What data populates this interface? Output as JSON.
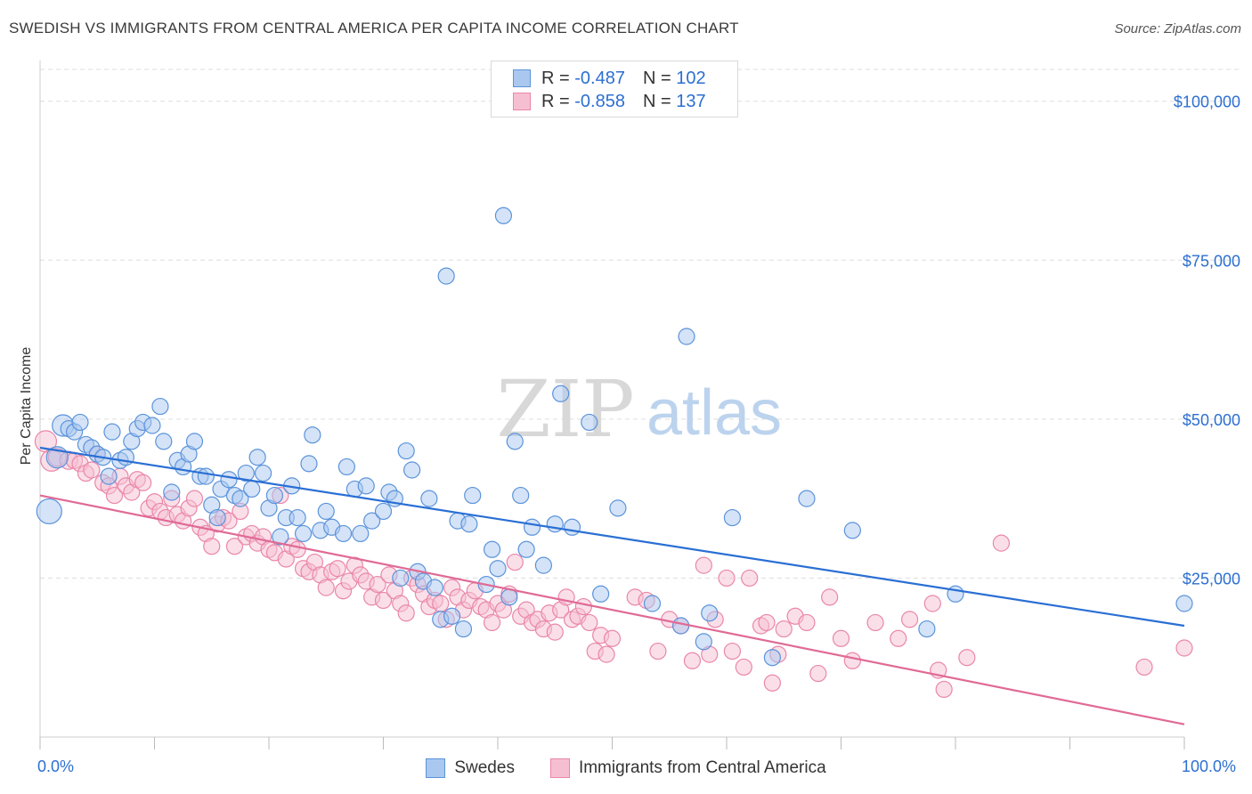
{
  "title": "SWEDISH VS IMMIGRANTS FROM CENTRAL AMERICA PER CAPITA INCOME CORRELATION CHART",
  "source": "Source: ZipAtlas.com",
  "watermark": {
    "zip": "ZIP",
    "atlas": "atlas"
  },
  "legend": {
    "rows": [
      {
        "r_label": "R = ",
        "r_value": "-0.487",
        "n_label": "N = ",
        "n_value": "102"
      },
      {
        "r_label": "R = ",
        "r_value": "-0.858",
        "n_label": "N = ",
        "n_value": "137"
      }
    ]
  },
  "bottom_legend": [
    "Swedes",
    "Immigrants from Central America"
  ],
  "colors": {
    "blue_fill": "#aac8ef",
    "blue_stroke": "#5b93db",
    "blue_line": "#2a6fd4",
    "pink_fill": "#f6bfd1",
    "pink_stroke": "#ea86a9",
    "pink_line": "#e06a95",
    "tick_text": "#2c6fd1",
    "grid": "#dddddd"
  },
  "chart_data": {
    "type": "scatter",
    "title": "SWEDISH VS IMMIGRANTS FROM CENTRAL AMERICA PER CAPITA INCOME CORRELATION CHART",
    "xlabel": "",
    "ylabel": "Per Capita Income",
    "xlim": [
      0,
      100
    ],
    "ylim": [
      0,
      105000
    ],
    "x_tick_labels": [
      "0.0%",
      "100.0%"
    ],
    "y_ticks": [
      25000,
      50000,
      75000,
      100000
    ],
    "y_tick_labels": [
      "$25,000",
      "$50,000",
      "$75,000",
      "$100,000"
    ],
    "grid": true,
    "legend_position": "top-center",
    "series": [
      {
        "name": "Swedes",
        "r": -0.487,
        "n": 102,
        "trend": {
          "x": [
            0,
            100
          ],
          "y": [
            45500,
            17500
          ]
        },
        "points": [
          [
            0.8,
            35500,
            14
          ],
          [
            1.5,
            44000,
            12
          ],
          [
            2,
            49000,
            12
          ],
          [
            2.5,
            48500,
            9
          ],
          [
            3,
            48000,
            9
          ],
          [
            3.5,
            49500,
            9
          ],
          [
            4,
            46000,
            9
          ],
          [
            4.5,
            45500,
            9
          ],
          [
            5,
            44500,
            9
          ],
          [
            5.5,
            44000,
            9
          ],
          [
            6,
            41000,
            9
          ],
          [
            6.3,
            48000,
            9
          ],
          [
            7,
            43500,
            9
          ],
          [
            7.5,
            44000,
            9
          ],
          [
            8,
            46500,
            9
          ],
          [
            8.5,
            48500,
            9
          ],
          [
            9,
            49500,
            9
          ],
          [
            9.8,
            49000,
            9
          ],
          [
            10.5,
            52000,
            9
          ],
          [
            10.8,
            46500,
            9
          ],
          [
            11.5,
            38500,
            9
          ],
          [
            12,
            43500,
            9
          ],
          [
            12.5,
            42500,
            9
          ],
          [
            13,
            44500,
            9
          ],
          [
            13.5,
            46500,
            9
          ],
          [
            14,
            41000,
            9
          ],
          [
            14.5,
            41000,
            9
          ],
          [
            15,
            36500,
            9
          ],
          [
            15.5,
            34500,
            9
          ],
          [
            15.8,
            39000,
            9
          ],
          [
            16.5,
            40500,
            9
          ],
          [
            17,
            38000,
            9
          ],
          [
            17.5,
            37500,
            9
          ],
          [
            18,
            41500,
            9
          ],
          [
            18.5,
            39000,
            9
          ],
          [
            19,
            44000,
            9
          ],
          [
            19.5,
            41500,
            9
          ],
          [
            20,
            36000,
            9
          ],
          [
            20.5,
            38000,
            9
          ],
          [
            21,
            31500,
            9
          ],
          [
            21.5,
            34500,
            9
          ],
          [
            22,
            39500,
            9
          ],
          [
            22.5,
            34500,
            9
          ],
          [
            23,
            32000,
            9
          ],
          [
            23.5,
            43000,
            9
          ],
          [
            23.8,
            47500,
            9
          ],
          [
            24.5,
            32500,
            9
          ],
          [
            25,
            35500,
            9
          ],
          [
            25.5,
            33000,
            9
          ],
          [
            26.5,
            32000,
            9
          ],
          [
            26.8,
            42500,
            9
          ],
          [
            27.5,
            39000,
            9
          ],
          [
            28,
            32000,
            9
          ],
          [
            28.5,
            39500,
            9
          ],
          [
            29,
            34000,
            9
          ],
          [
            30,
            35500,
            9
          ],
          [
            30.5,
            38500,
            9
          ],
          [
            31,
            37500,
            9
          ],
          [
            31.5,
            25000,
            9
          ],
          [
            32,
            45000,
            9
          ],
          [
            32.5,
            42000,
            9
          ],
          [
            33,
            26000,
            9
          ],
          [
            33.5,
            24500,
            9
          ],
          [
            34,
            37500,
            9
          ],
          [
            34.5,
            23500,
            9
          ],
          [
            35,
            18500,
            9
          ],
          [
            35.5,
            72500,
            9
          ],
          [
            36,
            19000,
            9
          ],
          [
            36.5,
            34000,
            9
          ],
          [
            37,
            17000,
            9
          ],
          [
            37.5,
            33500,
            9
          ],
          [
            37.8,
            38000,
            9
          ],
          [
            39,
            24000,
            9
          ],
          [
            39.5,
            29500,
            9
          ],
          [
            40,
            26500,
            9
          ],
          [
            40.5,
            82000,
            9
          ],
          [
            41,
            22000,
            9
          ],
          [
            41.5,
            46500,
            9
          ],
          [
            42,
            38000,
            9
          ],
          [
            42.5,
            29500,
            9
          ],
          [
            43,
            33000,
            9
          ],
          [
            44,
            27000,
            9
          ],
          [
            45,
            33500,
            9
          ],
          [
            45.5,
            54000,
            9
          ],
          [
            46.5,
            33000,
            9
          ],
          [
            48,
            49500,
            9
          ],
          [
            49,
            22500,
            9
          ],
          [
            50.5,
            36000,
            9
          ],
          [
            53.5,
            21000,
            9
          ],
          [
            56,
            17500,
            9
          ],
          [
            56.5,
            63000,
            9
          ],
          [
            58,
            15000,
            9
          ],
          [
            58.5,
            19500,
            9
          ],
          [
            60.5,
            34500,
            9
          ],
          [
            64,
            12500,
            9
          ],
          [
            67,
            37500,
            9
          ],
          [
            71,
            32500,
            9
          ],
          [
            77.5,
            17000,
            9
          ],
          [
            80,
            22500,
            9
          ],
          [
            100,
            21000,
            9
          ]
        ]
      },
      {
        "name": "Immigrants from Central America",
        "r": -0.858,
        "n": 137,
        "trend": {
          "x": [
            0,
            100
          ],
          "y": [
            38000,
            2000
          ]
        },
        "points": [
          [
            0.5,
            46500,
            12
          ],
          [
            1,
            43500,
            12
          ],
          [
            1.5,
            44000,
            10
          ],
          [
            2.5,
            43500,
            10
          ],
          [
            3,
            43500,
            9
          ],
          [
            3.5,
            43000,
            9
          ],
          [
            4,
            41500,
            9
          ],
          [
            4.5,
            42000,
            9
          ],
          [
            5,
            44500,
            9
          ],
          [
            5.5,
            40000,
            9
          ],
          [
            6,
            39500,
            9
          ],
          [
            6.5,
            38000,
            9
          ],
          [
            7,
            41000,
            9
          ],
          [
            7.5,
            39500,
            9
          ],
          [
            8,
            38500,
            9
          ],
          [
            8.5,
            40500,
            9
          ],
          [
            9,
            40000,
            9
          ],
          [
            9.5,
            36000,
            9
          ],
          [
            10,
            37000,
            9
          ],
          [
            10.5,
            35500,
            9
          ],
          [
            11,
            34500,
            9
          ],
          [
            11.5,
            37500,
            9
          ],
          [
            12,
            35000,
            9
          ],
          [
            12.5,
            34000,
            9
          ],
          [
            13,
            36000,
            9
          ],
          [
            13.5,
            37500,
            9
          ],
          [
            14,
            33000,
            9
          ],
          [
            14.5,
            32000,
            9
          ],
          [
            15,
            30000,
            9
          ],
          [
            15.5,
            33500,
            9
          ],
          [
            16,
            34500,
            9
          ],
          [
            16.5,
            34000,
            9
          ],
          [
            17,
            30000,
            9
          ],
          [
            17.5,
            35500,
            9
          ],
          [
            18,
            31500,
            9
          ],
          [
            18.5,
            32000,
            9
          ],
          [
            19,
            30500,
            9
          ],
          [
            19.5,
            31500,
            9
          ],
          [
            20,
            29500,
            9
          ],
          [
            20.5,
            29000,
            9
          ],
          [
            21,
            38000,
            9
          ],
          [
            21.5,
            28000,
            9
          ],
          [
            22,
            30000,
            9
          ],
          [
            22.5,
            29500,
            9
          ],
          [
            23,
            26500,
            9
          ],
          [
            23.5,
            26000,
            9
          ],
          [
            24,
            27500,
            9
          ],
          [
            24.5,
            25500,
            9
          ],
          [
            25,
            23500,
            9
          ],
          [
            25.5,
            26000,
            9
          ],
          [
            26,
            26500,
            9
          ],
          [
            26.5,
            23000,
            9
          ],
          [
            27,
            24500,
            9
          ],
          [
            27.5,
            27000,
            9
          ],
          [
            28,
            25500,
            9
          ],
          [
            28.5,
            24500,
            9
          ],
          [
            29,
            22000,
            9
          ],
          [
            29.5,
            24000,
            9
          ],
          [
            30,
            21500,
            9
          ],
          [
            30.5,
            25500,
            9
          ],
          [
            31,
            23000,
            9
          ],
          [
            31.5,
            21000,
            9
          ],
          [
            32,
            19500,
            9
          ],
          [
            32.5,
            25000,
            9
          ],
          [
            33,
            24000,
            9
          ],
          [
            33.5,
            22500,
            9
          ],
          [
            34,
            20500,
            9
          ],
          [
            34.5,
            21500,
            9
          ],
          [
            35,
            21000,
            9
          ],
          [
            35.5,
            18500,
            9
          ],
          [
            36,
            23500,
            9
          ],
          [
            36.5,
            22000,
            9
          ],
          [
            37,
            20000,
            9
          ],
          [
            37.5,
            21500,
            9
          ],
          [
            38,
            23000,
            9
          ],
          [
            38.5,
            20500,
            9
          ],
          [
            39,
            20000,
            9
          ],
          [
            39.5,
            18000,
            9
          ],
          [
            40,
            21000,
            9
          ],
          [
            40.5,
            20000,
            9
          ],
          [
            41,
            22500,
            9
          ],
          [
            41.5,
            27500,
            9
          ],
          [
            42,
            19000,
            9
          ],
          [
            42.5,
            20000,
            9
          ],
          [
            43,
            18000,
            9
          ],
          [
            43.5,
            18500,
            9
          ],
          [
            44,
            17000,
            9
          ],
          [
            44.5,
            19500,
            9
          ],
          [
            45,
            16500,
            9
          ],
          [
            45.5,
            20000,
            9
          ],
          [
            46,
            22000,
            9
          ],
          [
            46.5,
            18500,
            9
          ],
          [
            47,
            19000,
            9
          ],
          [
            47.5,
            20500,
            9
          ],
          [
            48,
            18000,
            9
          ],
          [
            48.5,
            13500,
            9
          ],
          [
            49,
            16000,
            9
          ],
          [
            49.5,
            13000,
            9
          ],
          [
            50,
            15500,
            9
          ],
          [
            52,
            22000,
            9
          ],
          [
            53,
            21500,
            9
          ],
          [
            54,
            13500,
            9
          ],
          [
            55,
            18500,
            9
          ],
          [
            56,
            17500,
            9
          ],
          [
            57,
            12000,
            9
          ],
          [
            58,
            27000,
            9
          ],
          [
            58.5,
            13000,
            9
          ],
          [
            59,
            18500,
            9
          ],
          [
            60,
            25000,
            9
          ],
          [
            60.5,
            13500,
            9
          ],
          [
            61.5,
            11000,
            9
          ],
          [
            62,
            25000,
            9
          ],
          [
            63,
            17500,
            9
          ],
          [
            63.5,
            18000,
            9
          ],
          [
            64,
            8500,
            9
          ],
          [
            64.5,
            13000,
            9
          ],
          [
            65,
            17000,
            9
          ],
          [
            66,
            19000,
            9
          ],
          [
            67,
            18000,
            9
          ],
          [
            68,
            10000,
            9
          ],
          [
            69,
            22000,
            9
          ],
          [
            70,
            15500,
            9
          ],
          [
            71,
            12000,
            9
          ],
          [
            73,
            18000,
            9
          ],
          [
            75,
            15500,
            9
          ],
          [
            76,
            18500,
            9
          ],
          [
            78,
            21000,
            9
          ],
          [
            78.5,
            10500,
            9
          ],
          [
            79,
            7500,
            9
          ],
          [
            81,
            12500,
            9
          ],
          [
            84,
            30500,
            9
          ],
          [
            96.5,
            11000,
            9
          ],
          [
            100,
            14000,
            9
          ]
        ]
      }
    ]
  }
}
